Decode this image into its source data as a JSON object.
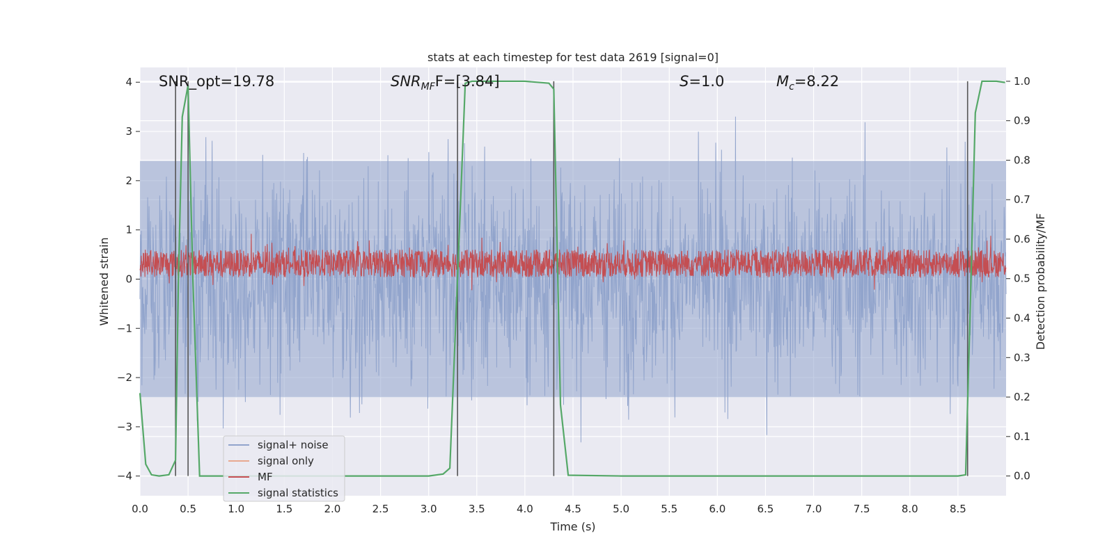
{
  "chart_data": {
    "type": "line",
    "title": "stats at each timestep for test data 2619 [signal=0]",
    "xlabel": "Time (s)",
    "ylabel": "Whitened strain",
    "ylabel_right": "Detection probability/MF",
    "xlim": [
      0.0,
      9.0
    ],
    "ylim": [
      -4.4,
      4.3
    ],
    "ylim_right": [
      -0.05,
      1.035
    ],
    "x_ticks": [
      "0.0",
      "0.5",
      "1.0",
      "1.5",
      "2.0",
      "2.5",
      "3.0",
      "3.5",
      "4.0",
      "4.5",
      "5.0",
      "5.5",
      "6.0",
      "6.5",
      "7.0",
      "7.5",
      "8.0",
      "8.5"
    ],
    "y_ticks": [
      "4",
      "3",
      "2",
      "1",
      "0",
      "−1",
      "−2",
      "−3",
      "−4"
    ],
    "y_ticks_right": [
      "1.0",
      "0.9",
      "0.8",
      "0.7",
      "0.6",
      "0.5",
      "0.4",
      "0.3",
      "0.2",
      "0.1",
      "0.0"
    ],
    "grid": true,
    "legend_position": "lower-left",
    "annotations": [
      {
        "id": "snr-opt",
        "text": "SNR_opt=19.78",
        "x": 0.2,
        "y": 4.0
      },
      {
        "id": "snr-mf",
        "main": "SNR",
        "sub": "MF",
        "rest": "F=[3.84]",
        "x": 2.6,
        "y": 4.0
      },
      {
        "id": "s",
        "main": "S",
        "rest": "=1.0",
        "x": 5.6,
        "y": 4.0
      },
      {
        "id": "mc",
        "main": "M",
        "sub": "c",
        "rest": "=8.22",
        "x": 6.6,
        "y": 4.0
      }
    ],
    "vlines": [
      0.37,
      0.5,
      3.3,
      4.3,
      8.6
    ],
    "series": [
      {
        "name": "signal+ noise",
        "color": "#91a4cc",
        "axis": "left",
        "style": "noise",
        "envelope_pos": 2.4,
        "envelope_neg": -2.4,
        "std": 1.05,
        "n_points": 1800
      },
      {
        "name": "signal only",
        "color": "#e8a88f",
        "axis": "left",
        "style": "flat",
        "value": 0.0
      },
      {
        "name": "MF",
        "color": "#c44e52",
        "axis": "left",
        "style": "band",
        "center": 0.32,
        "half_width": 0.28,
        "n_points": 2600
      },
      {
        "name": "signal statistics",
        "color": "#55a868",
        "axis": "right",
        "style": "line",
        "x": [
          0.0,
          0.06,
          0.12,
          0.2,
          0.3,
          0.37,
          0.4,
          0.44,
          0.5,
          0.55,
          0.62,
          0.7,
          1.0,
          2.0,
          3.0,
          3.15,
          3.22,
          3.3,
          3.38,
          3.45,
          3.6,
          4.0,
          4.25,
          4.3,
          4.37,
          4.45,
          5.0,
          6.0,
          7.0,
          8.0,
          8.5,
          8.58,
          8.63,
          8.68,
          8.75,
          8.9,
          8.99
        ],
        "y": [
          0.21,
          0.03,
          0.003,
          0.0,
          0.003,
          0.04,
          0.5,
          0.91,
          0.99,
          0.5,
          0.0,
          0.0,
          0.0,
          0.0,
          0.0,
          0.005,
          0.02,
          0.5,
          0.995,
          1.0,
          1.0,
          1.0,
          0.995,
          0.98,
          0.18,
          0.002,
          0.0,
          0.0,
          0.0,
          0.0,
          0.0,
          0.003,
          0.45,
          0.92,
          1.0,
          1.0,
          0.997
        ]
      }
    ]
  }
}
